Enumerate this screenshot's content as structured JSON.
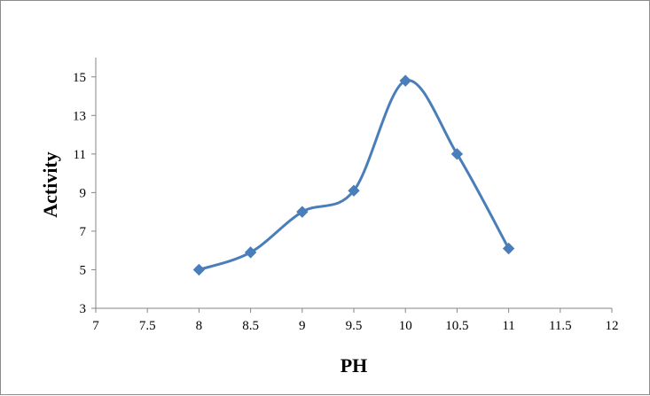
{
  "chart_data": {
    "type": "line",
    "title": "",
    "xlabel": "PH",
    "ylabel": "Activity",
    "xlim": [
      7,
      12
    ],
    "ylim": [
      3,
      16
    ],
    "x_ticks": [
      7,
      7.5,
      8,
      8.5,
      9,
      9.5,
      10,
      10.5,
      11,
      11.5,
      12
    ],
    "x_tick_labels": [
      "7",
      "7.5",
      "8",
      "8.5",
      "9",
      "9.5",
      "10",
      "10.5",
      "11",
      "11.5",
      "12"
    ],
    "y_ticks": [
      3,
      5,
      7,
      9,
      11,
      13,
      15
    ],
    "y_tick_labels": [
      "3",
      "5",
      "7",
      "9",
      "11",
      "13",
      "15"
    ],
    "grid": false,
    "legend": "none",
    "line_style": "smoothed",
    "marker": "diamond",
    "series": [
      {
        "color": "#4a7ebb",
        "x": [
          8,
          8.5,
          9,
          9.5,
          10,
          10.5,
          11
        ],
        "y": [
          5.0,
          5.9,
          8.0,
          9.1,
          14.8,
          11.0,
          6.1
        ]
      }
    ]
  }
}
